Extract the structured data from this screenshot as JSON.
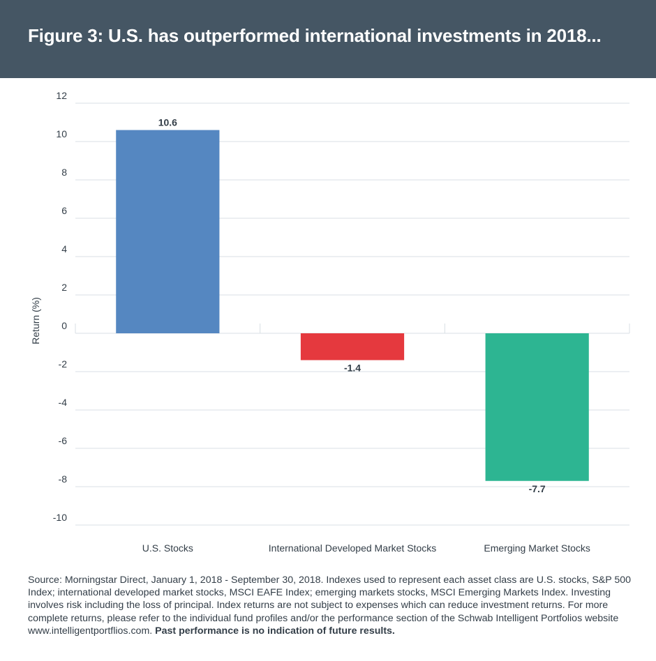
{
  "header": {
    "title": "Figure 3: U.S. has outperformed international investments in 2018..."
  },
  "chart_data": {
    "type": "bar",
    "title": "Figure 3: U.S. has outperformed international investments in 2018...",
    "xlabel": "",
    "ylabel": "Return (%)",
    "categories": [
      "U.S. Stocks",
      "International Developed Market Stocks",
      "Emerging Market Stocks"
    ],
    "values": [
      10.6,
      -1.4,
      -7.7
    ],
    "value_labels": [
      "10.6",
      "-1.4",
      "-7.7"
    ],
    "colors": [
      "#5587c1",
      "#e5393e",
      "#2db592"
    ],
    "ylim": [
      -10,
      12
    ],
    "yticks": [
      12,
      10,
      8,
      6,
      4,
      2,
      0,
      -2,
      -4,
      -6,
      -8,
      -10
    ],
    "grid": true,
    "legend": "none"
  },
  "footer": {
    "source": "Source: Morningstar Direct, January 1, 2018 - September 30, 2018. Indexes used to represent each asset class are U.S. stocks, S&P 500 Index; international developed market stocks, MSCI EAFE Index; emerging markets stocks, MSCI Emerging Markets Index. Investing involves risk including the loss of principal. Index returns are not subject to expenses which can reduce investment returns. For more complete returns, please refer to the individual fund profiles and/or the performance section of the Schwab Intelligent Portfolios website www.intelligentportflios.com.",
    "disclaimer": "Past performance is no indication of future results."
  }
}
